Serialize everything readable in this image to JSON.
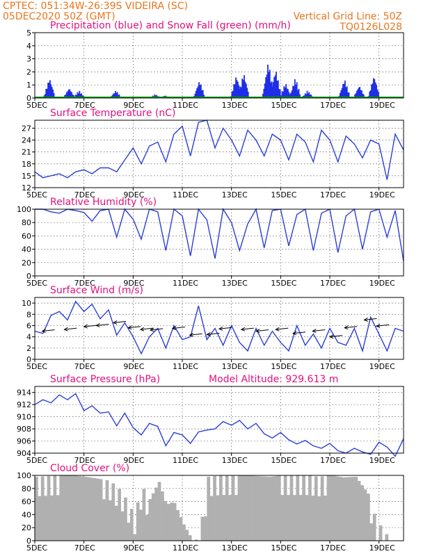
{
  "header": {
    "station": "CPTEC:   051:34W-26:39S   VIDEIRA (SC)",
    "run": "05DEC2020 50Z (GMT)",
    "grid_note": "Vertical Grid Line: 50Z",
    "code": "TQ0126L028"
  },
  "x_labels": [
    "5DEC",
    "7DEC",
    "9DEC",
    "11DEC",
    "13DEC",
    "15DEC",
    "17DEC",
    "19DEC"
  ],
  "model_altitude": "Model Altitude: 929.613 m",
  "colors": {
    "header": "#e8761c",
    "title": "#e0117f",
    "line": "#2a3ed6",
    "bar": "#1f2fe6",
    "snow": "#00a000",
    "cloud": "#b0b0b0"
  },
  "chart_data": [
    {
      "type": "bar",
      "title": "Precipitation (blue) and Snow Fall (green) (mm/h)",
      "ylim": [
        0,
        5
      ],
      "yticks": [
        0,
        1,
        2,
        3,
        4,
        5
      ],
      "series": [
        {
          "name": "Precipitation",
          "color": "#1f2fe6",
          "peaks": [
            [
              0.6,
              1.6
            ],
            [
              1.4,
              0.8
            ],
            [
              1.8,
              0.6
            ],
            [
              3.3,
              0.6
            ],
            [
              6.7,
              1.4
            ],
            [
              8.2,
              1.8
            ],
            [
              8.5,
              2.0
            ],
            [
              9.5,
              2.9
            ],
            [
              9.8,
              2.3
            ],
            [
              10.2,
              1.2
            ],
            [
              10.6,
              1.6
            ],
            [
              11.1,
              0.6
            ],
            [
              12.6,
              1.5
            ],
            [
              13.2,
              1.0
            ],
            [
              13.8,
              1.8
            ],
            [
              4.9,
              0.3
            ],
            [
              5.3,
              0.2
            ]
          ]
        },
        {
          "name": "Snow Fall",
          "color": "#00a000",
          "values": []
        }
      ]
    },
    {
      "type": "line",
      "title": "Surface Temperature (nC)",
      "ylim": [
        12,
        29
      ],
      "yticks": [
        12,
        15,
        18,
        21,
        24,
        27
      ],
      "x": [
        0,
        0.33,
        0.66,
        1.0,
        1.33,
        1.66,
        2.0,
        2.33,
        2.66,
        3.0,
        3.33,
        3.66,
        4.0,
        4.33,
        4.66,
        5.0,
        5.33,
        5.66,
        6.0,
        6.33,
        6.66,
        7.0,
        7.33,
        7.66,
        8.0,
        8.33,
        8.66,
        9.0,
        9.33,
        9.66,
        10.0,
        10.33,
        10.66,
        11.0,
        11.33,
        11.66,
        12.0,
        12.33,
        12.66,
        13.0,
        13.33,
        13.66,
        14.0,
        14.33,
        14.66,
        15.0
      ],
      "values": [
        16,
        14.5,
        15,
        15.5,
        14.5,
        16,
        16.5,
        15.5,
        17,
        17,
        16,
        19,
        22,
        18,
        22.5,
        23.5,
        18.5,
        25.5,
        27.5,
        20,
        28.5,
        29,
        22,
        27,
        24,
        20,
        26.5,
        24,
        20,
        25.5,
        24,
        19,
        25.5,
        23.5,
        18.5,
        26.5,
        24,
        18.5,
        25,
        23,
        19.5,
        24,
        23,
        14,
        25.5,
        21.5
      ]
    },
    {
      "type": "line",
      "title": "Relative Humidity (%)",
      "ylim": [
        0,
        100
      ],
      "yticks": [
        0,
        20,
        40,
        60,
        80,
        100
      ],
      "x": [
        0,
        0.33,
        0.66,
        1.0,
        1.33,
        1.66,
        2.0,
        2.33,
        2.66,
        3.0,
        3.33,
        3.66,
        4.0,
        4.33,
        4.66,
        5.0,
        5.33,
        5.66,
        6.0,
        6.33,
        6.66,
        7.0,
        7.33,
        7.66,
        8.0,
        8.33,
        8.66,
        9.0,
        9.33,
        9.66,
        10.0,
        10.33,
        10.66,
        11.0,
        11.33,
        11.66,
        12.0,
        12.33,
        12.66,
        13.0,
        13.33,
        13.66,
        14.0,
        14.33,
        14.66,
        15.0
      ],
      "values": [
        100,
        100,
        96,
        94,
        100,
        98,
        95,
        82,
        98,
        100,
        58,
        100,
        85,
        55,
        100,
        96,
        38,
        100,
        90,
        30,
        100,
        84,
        26,
        100,
        80,
        38,
        78,
        100,
        42,
        98,
        100,
        45,
        92,
        100,
        38,
        94,
        100,
        35,
        90,
        100,
        40,
        96,
        100,
        58,
        98,
        22
      ]
    },
    {
      "type": "line",
      "title": "Surface Wind (m/s)",
      "ylim": [
        0,
        11
      ],
      "yticks": [
        0,
        2,
        4,
        6,
        8,
        10
      ],
      "x": [
        0,
        0.33,
        0.66,
        1.0,
        1.33,
        1.66,
        2.0,
        2.33,
        2.66,
        3.0,
        3.33,
        3.66,
        4.0,
        4.33,
        4.66,
        5.0,
        5.33,
        5.66,
        6.0,
        6.33,
        6.66,
        7.0,
        7.33,
        7.66,
        8.0,
        8.33,
        8.66,
        9.0,
        9.33,
        9.66,
        10.0,
        10.33,
        10.66,
        11.0,
        11.33,
        11.66,
        12.0,
        12.33,
        12.66,
        13.0,
        13.33,
        13.66,
        14.0,
        14.33,
        14.66,
        15.0
      ],
      "values": [
        5,
        4.6,
        7.8,
        8.5,
        7,
        10.3,
        8.5,
        9.8,
        7.2,
        8.8,
        4.3,
        6.5,
        4,
        1,
        4,
        5.5,
        2,
        6,
        3.5,
        4,
        9.5,
        3.5,
        5.5,
        2.5,
        6,
        3,
        1.5,
        5.5,
        2.5,
        5,
        3,
        1.5,
        6,
        2.5,
        4.5,
        2,
        5.5,
        3,
        2.5,
        5.5,
        1.5,
        7.5,
        4.5,
        1.5,
        5.5,
        5
      ],
      "arrows": [
        [
          0.3,
          5
        ],
        [
          1.2,
          5.3
        ],
        [
          2.0,
          5.8
        ],
        [
          2.5,
          6
        ],
        [
          3.2,
          6.5
        ],
        [
          3.8,
          5.6
        ],
        [
          4.3,
          5.3
        ],
        [
          4.7,
          5.2
        ],
        [
          5.6,
          5.5
        ],
        [
          6.3,
          4.3
        ],
        [
          7.0,
          4.4
        ],
        [
          7.5,
          5.4
        ],
        [
          8.4,
          5.3
        ],
        [
          9.0,
          5
        ],
        [
          9.8,
          5.3
        ],
        [
          10.5,
          4.6
        ],
        [
          11.3,
          5
        ],
        [
          12.0,
          4
        ],
        [
          12.6,
          5.6
        ],
        [
          13.4,
          7
        ],
        [
          13.9,
          5.9
        ]
      ]
    },
    {
      "type": "line",
      "title": "Surface Pressure (hPa)",
      "ylim": [
        904,
        915
      ],
      "yticks": [
        904,
        906,
        908,
        910,
        912,
        914
      ],
      "x": [
        0,
        0.33,
        0.66,
        1.0,
        1.33,
        1.66,
        2.0,
        2.33,
        2.66,
        3.0,
        3.33,
        3.66,
        4.0,
        4.33,
        4.66,
        5.0,
        5.33,
        5.66,
        6.0,
        6.33,
        6.66,
        7.0,
        7.33,
        7.66,
        8.0,
        8.33,
        8.66,
        9.0,
        9.33,
        9.66,
        10.0,
        10.33,
        10.66,
        11.0,
        11.33,
        11.66,
        12.0,
        12.33,
        12.66,
        13.0,
        13.33,
        13.66,
        14.0,
        14.33,
        14.66,
        15.0
      ],
      "values": [
        912,
        912.8,
        912.3,
        913.6,
        912.8,
        913.8,
        911,
        911.8,
        910.6,
        910.8,
        908.5,
        910.6,
        908.2,
        907,
        908.9,
        908.4,
        905.2,
        907.4,
        907,
        905.6,
        907.5,
        907.8,
        908,
        909.2,
        908.6,
        909.4,
        908,
        908.9,
        907.2,
        906.5,
        907.4,
        906.2,
        905.5,
        906.1,
        905.2,
        904.8,
        905.6,
        904.4,
        904,
        904.8,
        904.2,
        903.8,
        905.8,
        905,
        903.5,
        906.4
      ]
    },
    {
      "type": "area",
      "title": "Cloud Cover (%)",
      "ylim": [
        0,
        100
      ],
      "yticks": [
        0,
        20,
        40,
        60,
        80,
        100
      ],
      "x": [
        0,
        0.5,
        1.0,
        1.5,
        2.0,
        2.5,
        3.0,
        3.5,
        4.0,
        4.3,
        4.6,
        5.0,
        5.3,
        5.6,
        6.0,
        6.3,
        6.6,
        7.0,
        7.5,
        8.0,
        8.5,
        9.0,
        9.5,
        10.0,
        10.5,
        11.0,
        11.5,
        12.0,
        12.5,
        13.0,
        13.5,
        13.8,
        14.2,
        14.5,
        15.0
      ],
      "values": [
        98,
        99,
        100,
        100,
        98,
        95,
        92,
        75,
        40,
        85,
        62,
        90,
        55,
        60,
        25,
        5,
        0,
        98,
        100,
        100,
        100,
        99,
        98,
        100,
        100,
        100,
        98,
        100,
        97,
        98,
        72,
        35,
        12,
        0,
        0
      ]
    }
  ]
}
